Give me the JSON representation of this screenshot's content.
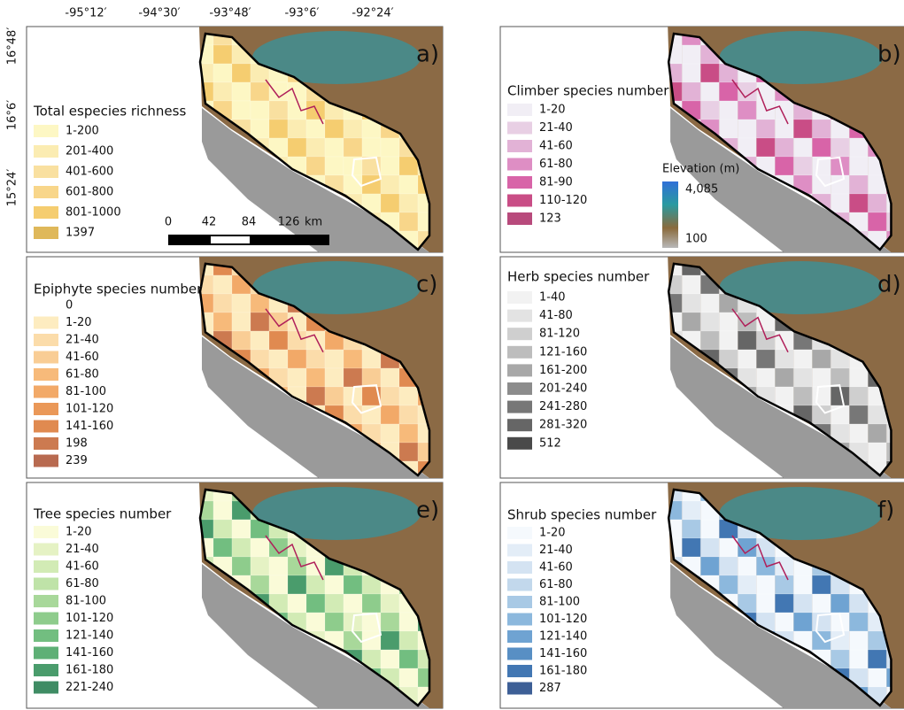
{
  "axes": {
    "longitude_labels": [
      "-95°12′",
      "-94°30′",
      "-93°48′",
      "-93°6′",
      "-92°24′"
    ],
    "latitude_labels": [
      "16°48′",
      "16°6′",
      "15°24′"
    ]
  },
  "panels": [
    {
      "letter": "a)",
      "legend_title": "Total  especies richness",
      "items": [
        {
          "label": "1-200",
          "color": "#fdf7c4"
        },
        {
          "label": "201-400",
          "color": "#fbecb2"
        },
        {
          "label": "401-600",
          "color": "#f9e0a0"
        },
        {
          "label": "601-800",
          "color": "#f8d68a"
        },
        {
          "label": "801-1000",
          "color": "#f5cd70"
        },
        {
          "label": "1397",
          "color": "#dfb85a"
        }
      ]
    },
    {
      "letter": "b)",
      "legend_title": "Climber species number",
      "items": [
        {
          "label": "1-20",
          "color": "#f1eef5"
        },
        {
          "label": "21-40",
          "color": "#e8cfe4"
        },
        {
          "label": "41-60",
          "color": "#e2b2d6"
        },
        {
          "label": "61-80",
          "color": "#de8ec4"
        },
        {
          "label": "81-90",
          "color": "#d864a8"
        },
        {
          "label": "110-120",
          "color": "#c94d86"
        },
        {
          "label": "123",
          "color": "#b84a7c"
        }
      ]
    },
    {
      "letter": "c)",
      "legend_title": "Epiphyte species number",
      "items": [
        {
          "label": "0"
        },
        {
          "label": "1-20",
          "color": "#fdecc0"
        },
        {
          "label": "21-40",
          "color": "#fbdcaa"
        },
        {
          "label": "41-60",
          "color": "#f9cd95"
        },
        {
          "label": "61-80",
          "color": "#f7ba7a"
        },
        {
          "label": "81-100",
          "color": "#f2a968"
        },
        {
          "label": "101-120",
          "color": "#ea9858"
        },
        {
          "label": "141-160",
          "color": "#e08a50"
        },
        {
          "label": "198",
          "color": "#cc7a50"
        },
        {
          "label": "239",
          "color": "#b86a50"
        }
      ]
    },
    {
      "letter": "d)",
      "legend_title": "Herb species number",
      "items": [
        {
          "label": "1-40",
          "color": "#f2f2f2"
        },
        {
          "label": "41-80",
          "color": "#e3e3e3"
        },
        {
          "label": "81-120",
          "color": "#cfcfcf"
        },
        {
          "label": "121-160",
          "color": "#bdbdbd"
        },
        {
          "label": "161-200",
          "color": "#a8a8a8"
        },
        {
          "label": "201-240",
          "color": "#8c8c8c"
        },
        {
          "label": "241-280",
          "color": "#777777"
        },
        {
          "label": "281-320",
          "color": "#666666"
        },
        {
          "label": "512",
          "color": "#4a4a4a"
        }
      ]
    },
    {
      "letter": "e)",
      "legend_title": "Tree species number",
      "items": [
        {
          "label": "1-20",
          "color": "#fafbd8"
        },
        {
          "label": "21-40",
          "color": "#e5f2c4"
        },
        {
          "label": "41-60",
          "color": "#d2ebb5"
        },
        {
          "label": "61-80",
          "color": "#bfe3a8"
        },
        {
          "label": "81-100",
          "color": "#a8d89a"
        },
        {
          "label": "101-120",
          "color": "#8ecc8c"
        },
        {
          "label": "121-140",
          "color": "#72be80"
        },
        {
          "label": "141-160",
          "color": "#5eb076"
        },
        {
          "label": "161-180",
          "color": "#4a9c6c"
        },
        {
          "label": "221-240",
          "color": "#3f8c64"
        }
      ]
    },
    {
      "letter": "f)",
      "legend_title": "Shrub species number",
      "items": [
        {
          "label": "1-20",
          "color": "#f5f9fd"
        },
        {
          "label": "21-40",
          "color": "#e3edf7"
        },
        {
          "label": "41-60",
          "color": "#d4e3f2"
        },
        {
          "label": "61-80",
          "color": "#c2d8ec"
        },
        {
          "label": "81-100",
          "color": "#a8c9e5"
        },
        {
          "label": "101-120",
          "color": "#8cb8dd"
        },
        {
          "label": "121-140",
          "color": "#6fa3d2"
        },
        {
          "label": "141-160",
          "color": "#588fc4"
        },
        {
          "label": "161-180",
          "color": "#4277b3"
        },
        {
          "label": "287",
          "color": "#3d5f96"
        }
      ]
    }
  ],
  "scale_bar": {
    "labels": [
      "0",
      "42",
      "84",
      "126"
    ],
    "unit": "km"
  },
  "elevation_legend": {
    "title": "Elevation (m)",
    "max": "4,085",
    "min": "100"
  }
}
